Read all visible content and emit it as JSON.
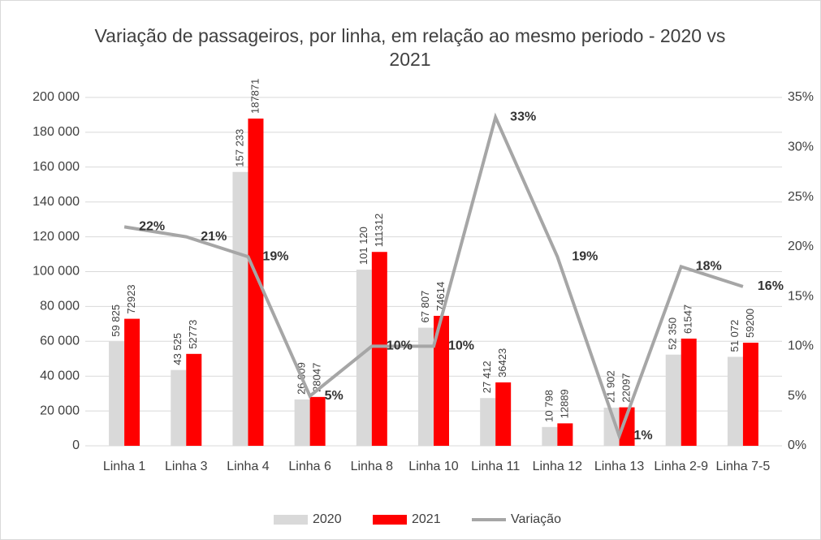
{
  "chart_data": {
    "type": "bar_line",
    "title": "Variação de passageiros, por linha, em relação ao mesmo periodo - 2020 vs 2021",
    "categories": [
      "Linha 1",
      "Linha 3",
      "Linha 4",
      "Linha 6",
      "Linha 8",
      "Linha 10",
      "Linha 11",
      "Linha 12",
      "Linha 13",
      "Linha 2-9",
      "Linha 7-5"
    ],
    "series": [
      {
        "name": "2020",
        "color": "#d9d9d9",
        "values": [
          59825,
          43525,
          157233,
          26609,
          101120,
          67807,
          27412,
          10798,
          21902,
          52350,
          51072
        ],
        "value_labels": [
          "59 825",
          "43 525",
          "157 233",
          "26 609",
          "101 120",
          "67 807",
          "27 412",
          "10 798",
          "21 902",
          "52 350",
          "51 072"
        ]
      },
      {
        "name": "2021",
        "color": "#ff0000",
        "values": [
          72923,
          52773,
          187871,
          28047,
          111312,
          74614,
          36423,
          12889,
          22097,
          61547,
          59200
        ]
      },
      {
        "name": "Variação",
        "color": "#a6a6a6",
        "axis": "y2",
        "values": [
          22,
          21,
          19,
          5,
          10,
          10,
          33,
          19,
          1,
          18,
          16
        ],
        "value_labels": [
          "22%",
          "21%",
          "19%",
          "5%",
          "10%",
          "10%",
          "33%",
          "19%",
          "1%",
          "18%",
          "16%"
        ]
      }
    ],
    "ylim": [
      0,
      200000
    ],
    "yticks": [
      0,
      {
        "value": 20000,
        "label": "20 000"
      },
      {
        "value": 40000,
        "label": "40 000"
      },
      {
        "value": 60000,
        "label": "60 000"
      },
      {
        "value": 80000,
        "label": "80 000"
      },
      {
        "value": 100000,
        "label": "100 000"
      },
      {
        "value": 120000,
        "label": "120 000"
      },
      {
        "value": 140000,
        "label": "140 000"
      },
      {
        "value": 160000,
        "label": "160 000"
      },
      {
        "value": 180000,
        "label": "180 000"
      },
      {
        "value": 200000,
        "label": "200 000"
      }
    ],
    "y2lim": [
      0,
      35
    ],
    "y2ticks": [
      {
        "value": 0,
        "label": "0%"
      },
      {
        "value": 5,
        "label": "5%"
      },
      {
        "value": 10,
        "label": "10%"
      },
      {
        "value": 15,
        "label": "15%"
      },
      {
        "value": 20,
        "label": "20%"
      },
      {
        "value": 25,
        "label": "25%"
      },
      {
        "value": 30,
        "label": "30%"
      },
      {
        "value": 35,
        "label": "35%"
      }
    ],
    "legend": "bottom"
  }
}
